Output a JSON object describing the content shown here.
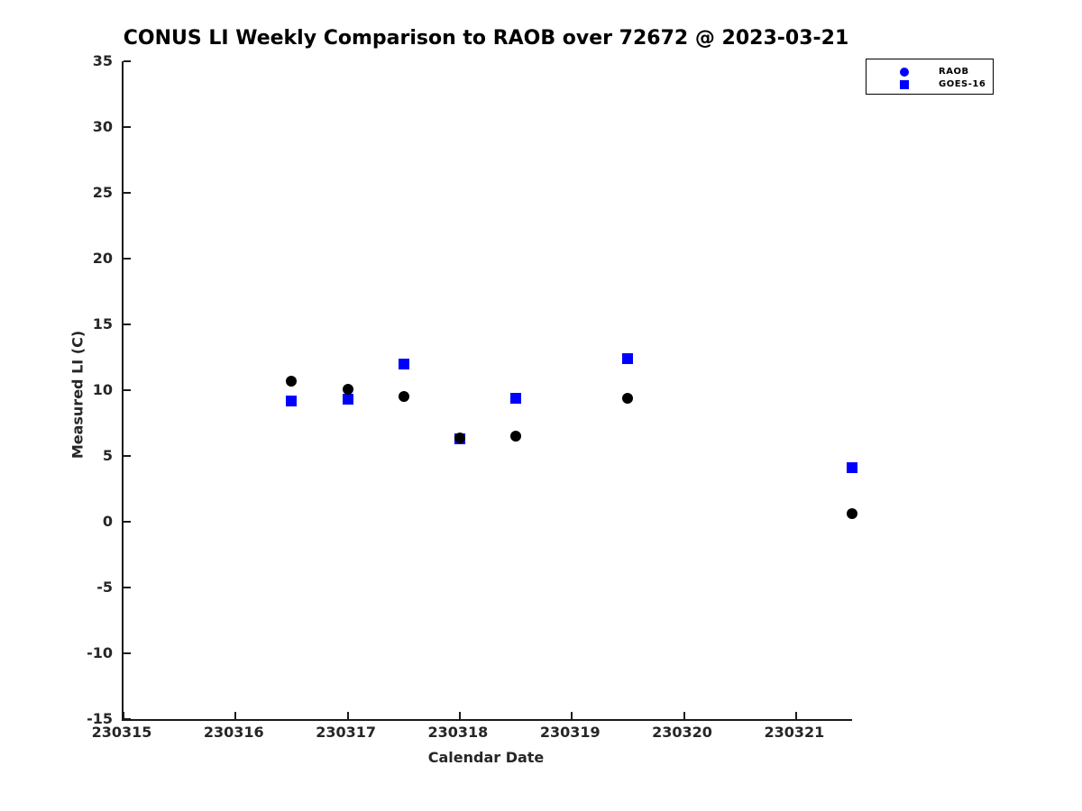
{
  "title": "CONUS LI Weekly Comparison to RAOB over 72672 @ 2023-03-21",
  "colors": {
    "series_blue": "#0000ff",
    "series_black": "#000000",
    "axis": "#1a1a1a",
    "tick_text": "#262626",
    "background": "#ffffff"
  },
  "chart_data": {
    "type": "scatter",
    "title": "CONUS LI Weekly Comparison to RAOB over 72672 @ 2023-03-21",
    "xlabel": "Calendar Date",
    "ylabel": "Measured LI (C)",
    "xlim": [
      230315,
      230321.5
    ],
    "ylim": [
      -15,
      35
    ],
    "x_ticks": [
      230315,
      230316,
      230317,
      230318,
      230319,
      230320,
      230321
    ],
    "y_ticks": [
      35,
      30,
      25,
      20,
      15,
      10,
      5,
      0,
      -5,
      -10,
      -15
    ],
    "grid": false,
    "legend_position": "top-right",
    "series": [
      {
        "name": "RAOB",
        "marker": "circle",
        "marker_color": "#000000",
        "legend_marker_color": "#0000ff",
        "x": [
          230316.5,
          230317.0,
          230317.5,
          230318.0,
          230318.5,
          230319.5,
          230321.5
        ],
        "y": [
          10.7,
          10.1,
          9.5,
          6.4,
          6.5,
          9.4,
          0.6
        ]
      },
      {
        "name": "GOES-16",
        "marker": "square",
        "marker_color": "#0000ff",
        "legend_marker_color": "#0000ff",
        "x": [
          230316.5,
          230317.0,
          230317.5,
          230318.0,
          230318.5,
          230319.5,
          230321.5
        ],
        "y": [
          9.2,
          9.3,
          12.0,
          6.3,
          9.4,
          12.4,
          4.1
        ]
      }
    ]
  }
}
